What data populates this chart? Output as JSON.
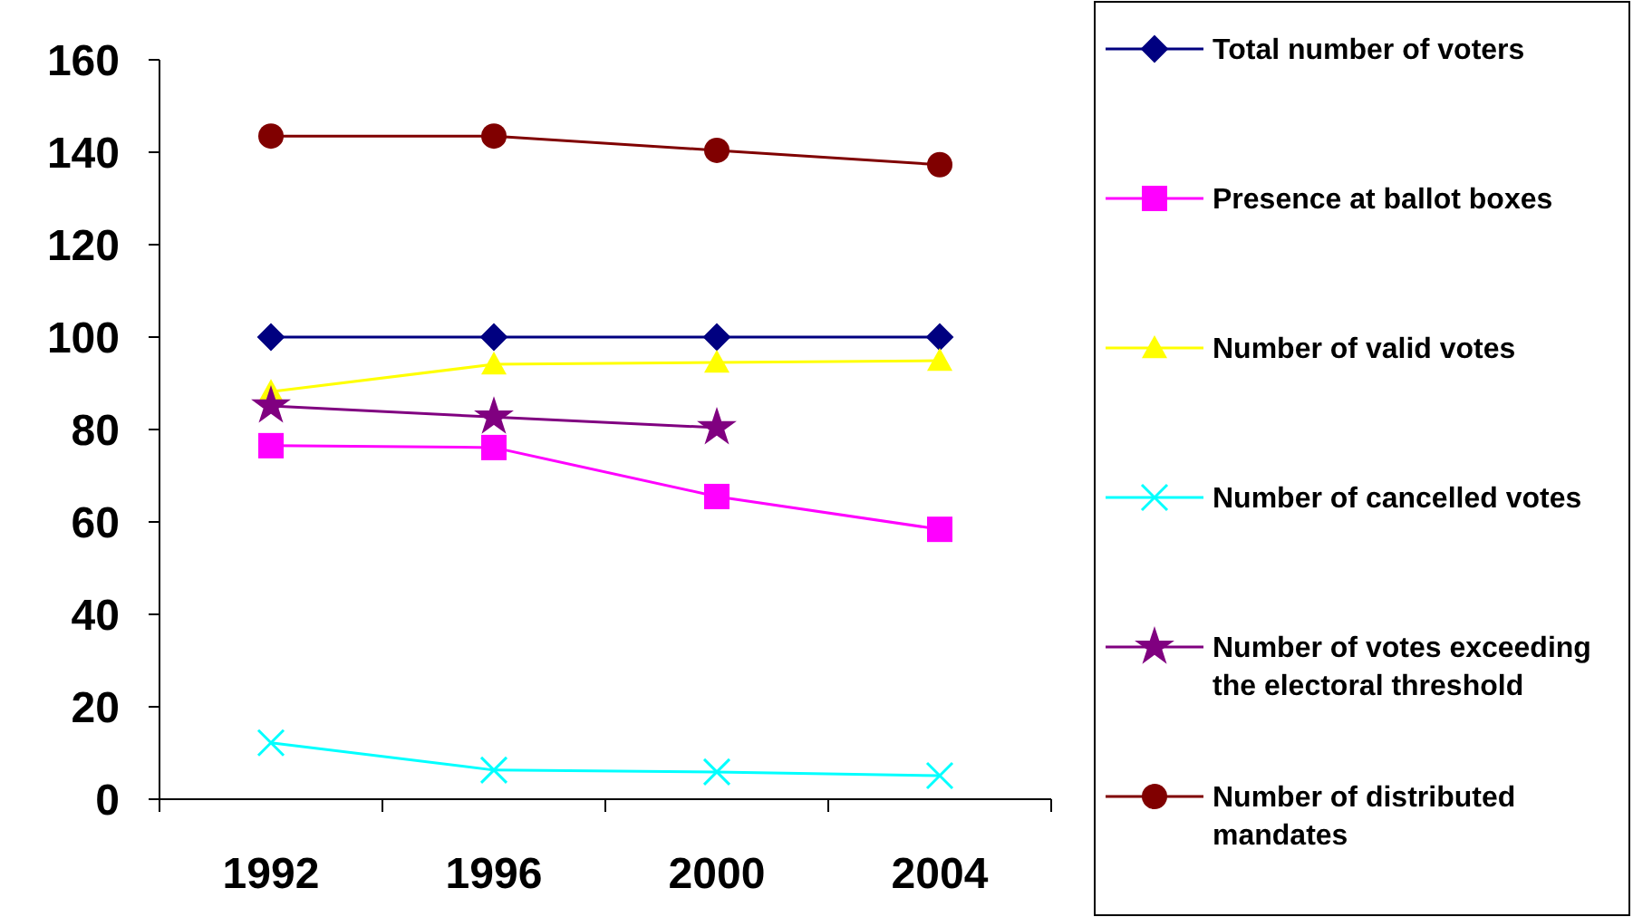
{
  "chart_data": {
    "type": "line",
    "categories": [
      "1992",
      "1996",
      "2000",
      "2004"
    ],
    "ylim": [
      0,
      160
    ],
    "yticks": [
      0,
      20,
      40,
      60,
      80,
      100,
      120,
      140,
      160
    ],
    "grid": false,
    "legend": "right",
    "series": [
      {
        "name": "Total number of voters",
        "color": "#000080",
        "marker": "diamond",
        "values": [
          100,
          100,
          100,
          100
        ]
      },
      {
        "name": "Presence at ballot boxes",
        "color": "#ff00ff",
        "marker": "square",
        "values": [
          76.5,
          76.1,
          65.5,
          58.4
        ]
      },
      {
        "name": "Number of valid votes",
        "color": "#ffff00",
        "marker": "triangle",
        "values": [
          88.2,
          94.1,
          94.5,
          94.9
        ]
      },
      {
        "name": "Number of cancelled votes",
        "color": "#00ffff",
        "marker": "cross",
        "values": [
          12.2,
          6.3,
          5.9,
          5.1
        ]
      },
      {
        "name": "Number of votes exceeding the electoral threshold",
        "color": "#800080",
        "marker": "star",
        "values": [
          85.1,
          82.7,
          80.4,
          null
        ]
      },
      {
        "name": "Number of distributed mandates",
        "color": "#800000",
        "marker": "circle",
        "values": [
          143.5,
          143.5,
          140.4,
          137.3
        ]
      }
    ]
  }
}
